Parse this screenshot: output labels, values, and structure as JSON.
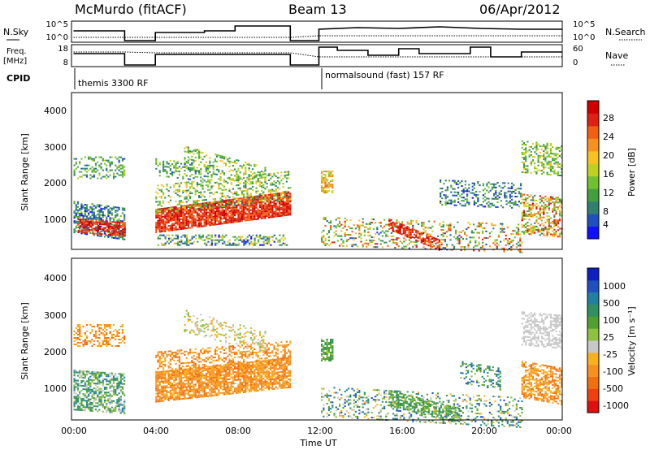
{
  "header": {
    "station": "McMurdo (fitACF)",
    "beam": "Beam 13",
    "date": "06/Apr/2012"
  },
  "params": {
    "nsky_label": "N.Sky",
    "nsearch_label": "N.Search",
    "freq_label_1": "Freq.",
    "freq_label_2": "[MHz]",
    "nave_label": "Nave",
    "cpid_label": "CPID",
    "left_ticks": [
      "10^5",
      "10^0"
    ],
    "right_ticks": [
      "10^5",
      "10^0"
    ],
    "freq_ticks": [
      "18",
      "8"
    ],
    "nave_ticks": [
      "60",
      "0"
    ],
    "cpid_segments": [
      {
        "label": "themis 3300 RF",
        "start": 0,
        "end": 12
      },
      {
        "label": "normalsound (fast) 157 RF",
        "start": 12,
        "end": 24
      }
    ]
  },
  "chart_data": [
    {
      "type": "heatmap",
      "panel": "power",
      "ylabel": "Slant Range [km]",
      "ylim": [
        180,
        4600
      ],
      "y_ticks": [
        "1000",
        "2000",
        "3000",
        "4000"
      ],
      "xlim": [
        0,
        24
      ],
      "colorbar": {
        "label": "Power [dB]",
        "ticks": [
          "28",
          "24",
          "20",
          "16",
          "12",
          "8",
          "4"
        ],
        "colors": [
          "#1010ff",
          "#2050c0",
          "#308070",
          "#40a040",
          "#70c030",
          "#c0d020",
          "#f8c020",
          "#f89020",
          "#f06010",
          "#e02010",
          "#d00000"
        ]
      }
    },
    {
      "type": "heatmap",
      "panel": "velocity",
      "ylabel": "Slant Range [km]",
      "ylim": [
        180,
        4600
      ],
      "y_ticks": [
        "1000",
        "2000",
        "3000",
        "4000"
      ],
      "xlim": [
        0,
        24
      ],
      "xlabel": "Time UT",
      "x_ticks": [
        "00:00",
        "04:00",
        "08:00",
        "12:00",
        "16:00",
        "20:00",
        "00:00"
      ],
      "colorbar": {
        "label": "Velocity [m s⁻¹]",
        "ticks": [
          "1000",
          "500",
          "100",
          "25",
          "-25",
          "-100",
          "-500",
          "-1000"
        ],
        "colors": [
          "#1020c0",
          "#2050c0",
          "#2080a0",
          "#309060",
          "#50a030",
          "#90c040",
          "#c8c8c8",
          "#f8b020",
          "#f89020",
          "#f07010",
          "#f04010",
          "#e01010"
        ]
      }
    }
  ]
}
